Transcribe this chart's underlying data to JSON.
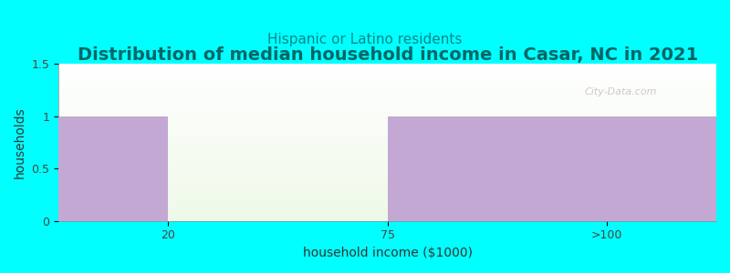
{
  "title": "Distribution of median household income in Casar, NC in 2021",
  "subtitle": "Hispanic or Latino residents",
  "xlabel": "household income ($1000)",
  "ylabel": "households",
  "background_color": "#00FFFF",
  "bar_color": "#C4A8D4",
  "xtick_labels": [
    "20",
    "75",
    ">100"
  ],
  "ylim": [
    0,
    1.5
  ],
  "ytick_positions": [
    0,
    0.5,
    1.0,
    1.5
  ],
  "ytick_labels": [
    "0",
    "0.5",
    "1",
    "1.5"
  ],
  "title_fontsize": 14,
  "subtitle_fontsize": 11,
  "title_color": "#006666",
  "subtitle_color": "#008888",
  "axis_label_fontsize": 10,
  "tick_label_fontsize": 9,
  "watermark": "City-Data.com"
}
